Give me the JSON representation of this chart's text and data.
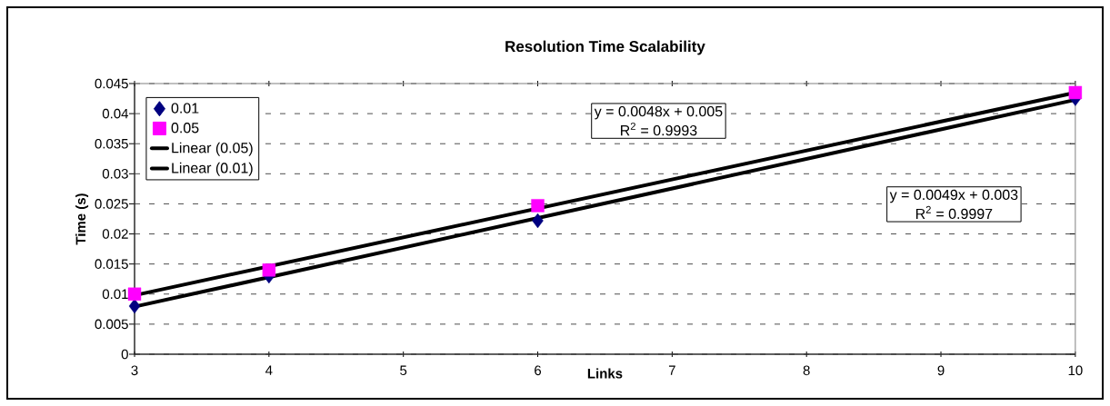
{
  "chart_data": {
    "type": "scatter",
    "title": "Resolution Time Scalability",
    "xlabel": "Links",
    "ylabel": "Time (s)",
    "series": [
      {
        "name": "0.01",
        "color": "#000080",
        "marker": "diamond",
        "x": [
          3,
          4,
          6,
          10
        ],
        "values": [
          0.008,
          0.013,
          0.0222,
          0.0425
        ]
      },
      {
        "name": "0.05",
        "color": "#ff00ff",
        "marker": "square",
        "x": [
          3,
          4,
          6,
          10
        ],
        "values": [
          0.01,
          0.014,
          0.0247,
          0.0435
        ]
      },
      {
        "name": "Linear (0.05)",
        "type": "line",
        "color": "#000000",
        "x": [
          3,
          10
        ],
        "values": [
          0.0098,
          0.0435
        ]
      },
      {
        "name": "Linear (0.01)",
        "type": "line",
        "color": "#000000",
        "x": [
          3,
          10
        ],
        "values": [
          0.0079,
          0.0423
        ]
      }
    ],
    "annotations": [
      "y = 0.0048x + 0.005",
      "R$^{2}$ = 0.9993",
      "y = 0.0049x + 0.003",
      "R$^{2}$ = 0.9997"
    ],
    "xlim": [
      3,
      10
    ],
    "xticks": [
      3,
      4,
      5,
      6,
      7,
      8,
      9,
      10
    ],
    "ylim": [
      0,
      0.045
    ],
    "yticks": [
      0,
      0.005,
      0.01,
      0.015,
      0.02,
      0.025,
      0.03,
      0.035,
      0.04,
      0.045
    ],
    "grid": "y",
    "legend": "top left",
    "line_style": "solid"
  }
}
